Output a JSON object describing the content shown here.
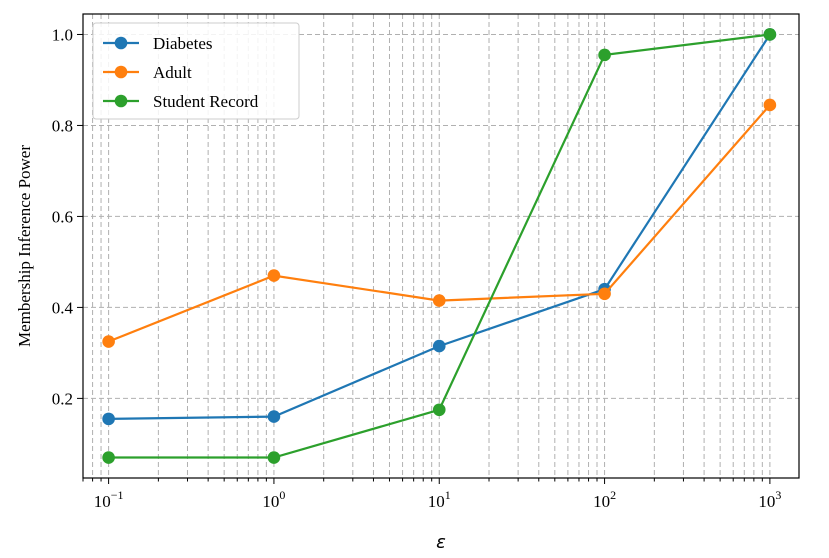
{
  "chart_data": {
    "type": "line",
    "xscale": "log",
    "xlabel": "ε",
    "ylabel": "Membership Inference Power",
    "xlim": [
      0.07,
      1500
    ],
    "ylim": [
      0.025,
      1.045
    ],
    "x": [
      0.1,
      1,
      10,
      100,
      1000
    ],
    "x_ticks": [
      {
        "base": "10",
        "exp": "−1"
      },
      {
        "base": "10",
        "exp": "0"
      },
      {
        "base": "10",
        "exp": "1"
      },
      {
        "base": "10",
        "exp": "2"
      },
      {
        "base": "10",
        "exp": "3"
      }
    ],
    "y_ticks": [
      "0.2",
      "0.4",
      "0.6",
      "0.8",
      "1.0"
    ],
    "grid": true,
    "legend_position": "top-left",
    "series": [
      {
        "name": "Diabetes",
        "color": "#1f77b4",
        "values": [
          0.155,
          0.16,
          0.315,
          0.44,
          1.0
        ]
      },
      {
        "name": "Adult",
        "color": "#ff7f0e",
        "values": [
          0.325,
          0.47,
          0.415,
          0.43,
          0.845
        ]
      },
      {
        "name": "Student Record",
        "color": "#2ca02c",
        "values": [
          0.07,
          0.07,
          0.175,
          0.955,
          1.0
        ]
      }
    ]
  }
}
